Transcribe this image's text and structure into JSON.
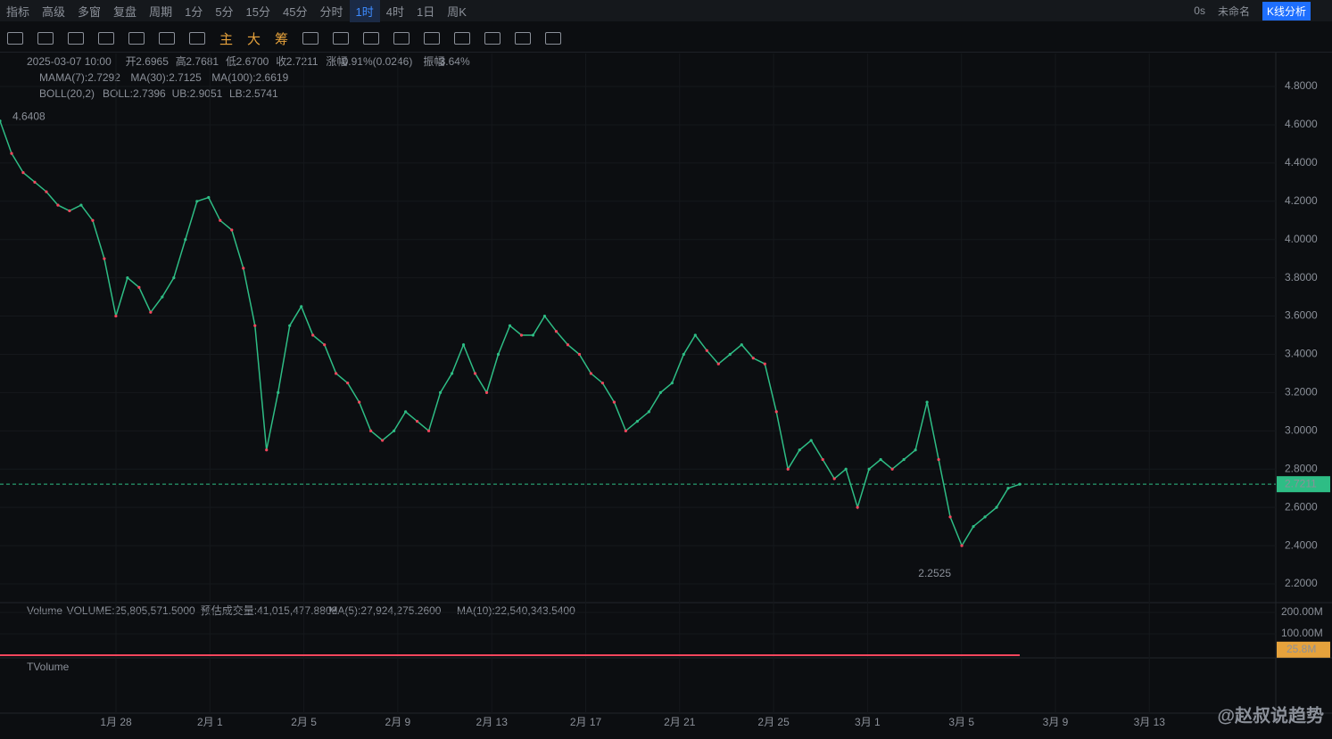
{
  "toolbar": {
    "items": [
      "指标",
      "高级",
      "多窗",
      "复盘",
      "周期",
      "1分",
      "5分",
      "15分",
      "45分",
      "分时",
      "1时",
      "4时",
      "1日",
      "周K"
    ],
    "active": "1时",
    "right": [
      "0s",
      "未命名",
      "K线分析"
    ]
  },
  "drawing_toolbar": {
    "items": [
      "主",
      "大",
      "筹"
    ]
  },
  "legend": {
    "ohlc": [
      "2025-03-07 10:00",
      "开",
      "2.6965",
      "高",
      "2.7681",
      "低",
      "2.6700",
      "收",
      "2.7211",
      "涨幅",
      "0.91%(0.0246)",
      "振幅",
      "3.64%"
    ],
    "ma": [
      "MA",
      "MA(7):2.7292",
      "MA(30):2.7125",
      "MA(100):2.6619"
    ],
    "boll": [
      "BOLL(20,2)",
      "BOLL:2.7396",
      "UB:2.9051",
      "LB:2.5741"
    ],
    "volume": [
      "Volume",
      "VOLUME:25,805,571.5000",
      "预估成交量:41,015,477.8808",
      "MA(5):27,924,275.2600",
      "MA(10):22,540,343.5400"
    ],
    "tvolume": "TVolume"
  },
  "chart_data": {
    "type": "line",
    "color": "#2ebd85",
    "ylim": [
      2.1068,
      4.9726
    ],
    "yticks": [
      {
        "value": 2.2,
        "label": "2.2000"
      },
      {
        "value": 2.4,
        "label": "2.4000"
      },
      {
        "value": 2.6,
        "label": "2.6000"
      },
      {
        "value": 2.8,
        "label": "2.8000"
      },
      {
        "value": 3.0,
        "label": "3.0000"
      },
      {
        "value": 3.2,
        "label": "3.2000"
      },
      {
        "value": 3.4,
        "label": "3.4000"
      },
      {
        "value": 3.6,
        "label": "3.6000"
      },
      {
        "value": 3.8,
        "label": "3.8000"
      },
      {
        "value": 4.0,
        "label": "4.0000"
      },
      {
        "value": 4.2,
        "label": "4.2000"
      },
      {
        "value": 4.4,
        "label": "4.4000"
      },
      {
        "value": 4.6,
        "label": "4.6000"
      },
      {
        "value": 4.8,
        "label": "4.8000"
      }
    ],
    "x_labels": [
      "1月 28",
      "2月 1",
      "2月 5",
      "2月 9",
      "2月 13",
      "2月 17",
      "2月 21",
      "2月 25",
      "3月 1",
      "3月 5",
      "3月 9",
      "3月 13"
    ],
    "values": [
      4.62,
      4.45,
      4.35,
      4.3,
      4.25,
      4.18,
      4.15,
      4.18,
      4.1,
      3.9,
      3.6,
      3.8,
      3.75,
      3.62,
      3.7,
      3.8,
      4.0,
      4.2,
      4.22,
      4.1,
      4.05,
      3.85,
      3.55,
      2.9,
      3.2,
      3.55,
      3.65,
      3.5,
      3.45,
      3.3,
      3.25,
      3.15,
      3.0,
      2.95,
      3.0,
      3.1,
      3.05,
      3.0,
      3.2,
      3.3,
      3.45,
      3.3,
      3.2,
      3.4,
      3.55,
      3.5,
      3.5,
      3.6,
      3.52,
      3.45,
      3.4,
      3.3,
      3.25,
      3.15,
      3.0,
      3.05,
      3.1,
      3.2,
      3.25,
      3.4,
      3.5,
      3.42,
      3.35,
      3.4,
      3.45,
      3.38,
      3.35,
      3.1,
      2.8,
      2.9,
      2.95,
      2.85,
      2.75,
      2.8,
      2.6,
      2.8,
      2.85,
      2.8,
      2.85,
      2.9,
      3.15,
      2.85,
      2.55,
      2.4,
      2.5,
      2.55,
      2.6,
      2.7,
      2.7211
    ],
    "high_marker": {
      "value": 4.6408,
      "label": "4.6408"
    },
    "low_marker": {
      "value": 2.2525,
      "label": "2.2525"
    },
    "last_price": {
      "value": 2.7211,
      "label": "2.7211"
    },
    "volume_ylim": [
      0,
      200000000
    ],
    "volume_ticks": [
      {
        "value": 100000000,
        "label": "100.00M"
      },
      {
        "value": 200000000,
        "label": "200.00M"
      }
    ],
    "volume_last": {
      "value": 25800000,
      "label": "25.8M"
    }
  },
  "watermark": "@赵叔说趋势"
}
